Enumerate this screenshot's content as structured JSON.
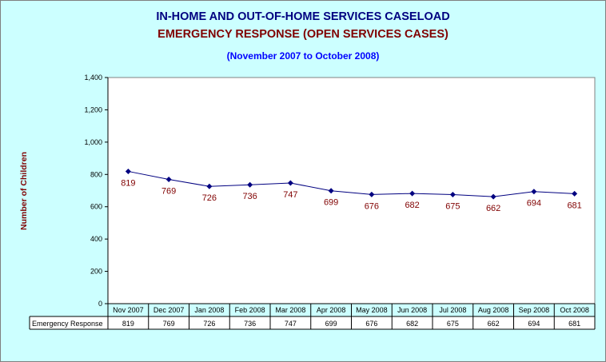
{
  "header": {
    "title": "IN-HOME AND OUT-OF-HOME SERVICES CASELOAD",
    "subtitle": "EMERGENCY RESPONSE (OPEN SERVICES CASES)",
    "period": "(November 2007 to October 2008)"
  },
  "colors": {
    "background": "#ccffff",
    "plot_area": "#ffffff",
    "line": "#000080",
    "marker": "#000080",
    "data_label": "#800000",
    "title": "#000080",
    "subtitle": "#800000",
    "period": "#0000ff"
  },
  "chart_data": {
    "type": "line",
    "title": "IN-HOME AND OUT-OF-HOME SERVICES CASELOAD",
    "subtitle": "EMERGENCY RESPONSE (OPEN SERVICES CASES)",
    "xlabel": "",
    "ylabel": "Number of Children",
    "ylim": [
      0,
      1400
    ],
    "yticks": [
      0,
      200,
      400,
      600,
      800,
      1000,
      1200,
      1400
    ],
    "ytick_labels": [
      "0",
      "200",
      "400",
      "600",
      "800",
      "1,000",
      "1,200",
      "1,400"
    ],
    "grid": false,
    "data_table": true,
    "categories": [
      "Nov 2007",
      "Dec 2007",
      "Jan 2008",
      "Feb 2008",
      "Mar 2008",
      "Apr 2008",
      "May 2008",
      "Jun 2008",
      "Jul 2008",
      "Aug 2008",
      "Sep 2008",
      "Oct 2008"
    ],
    "series": [
      {
        "name": "Emergency Response",
        "values": [
          819,
          769,
          726,
          736,
          747,
          699,
          676,
          682,
          675,
          662,
          694,
          681
        ]
      }
    ]
  }
}
